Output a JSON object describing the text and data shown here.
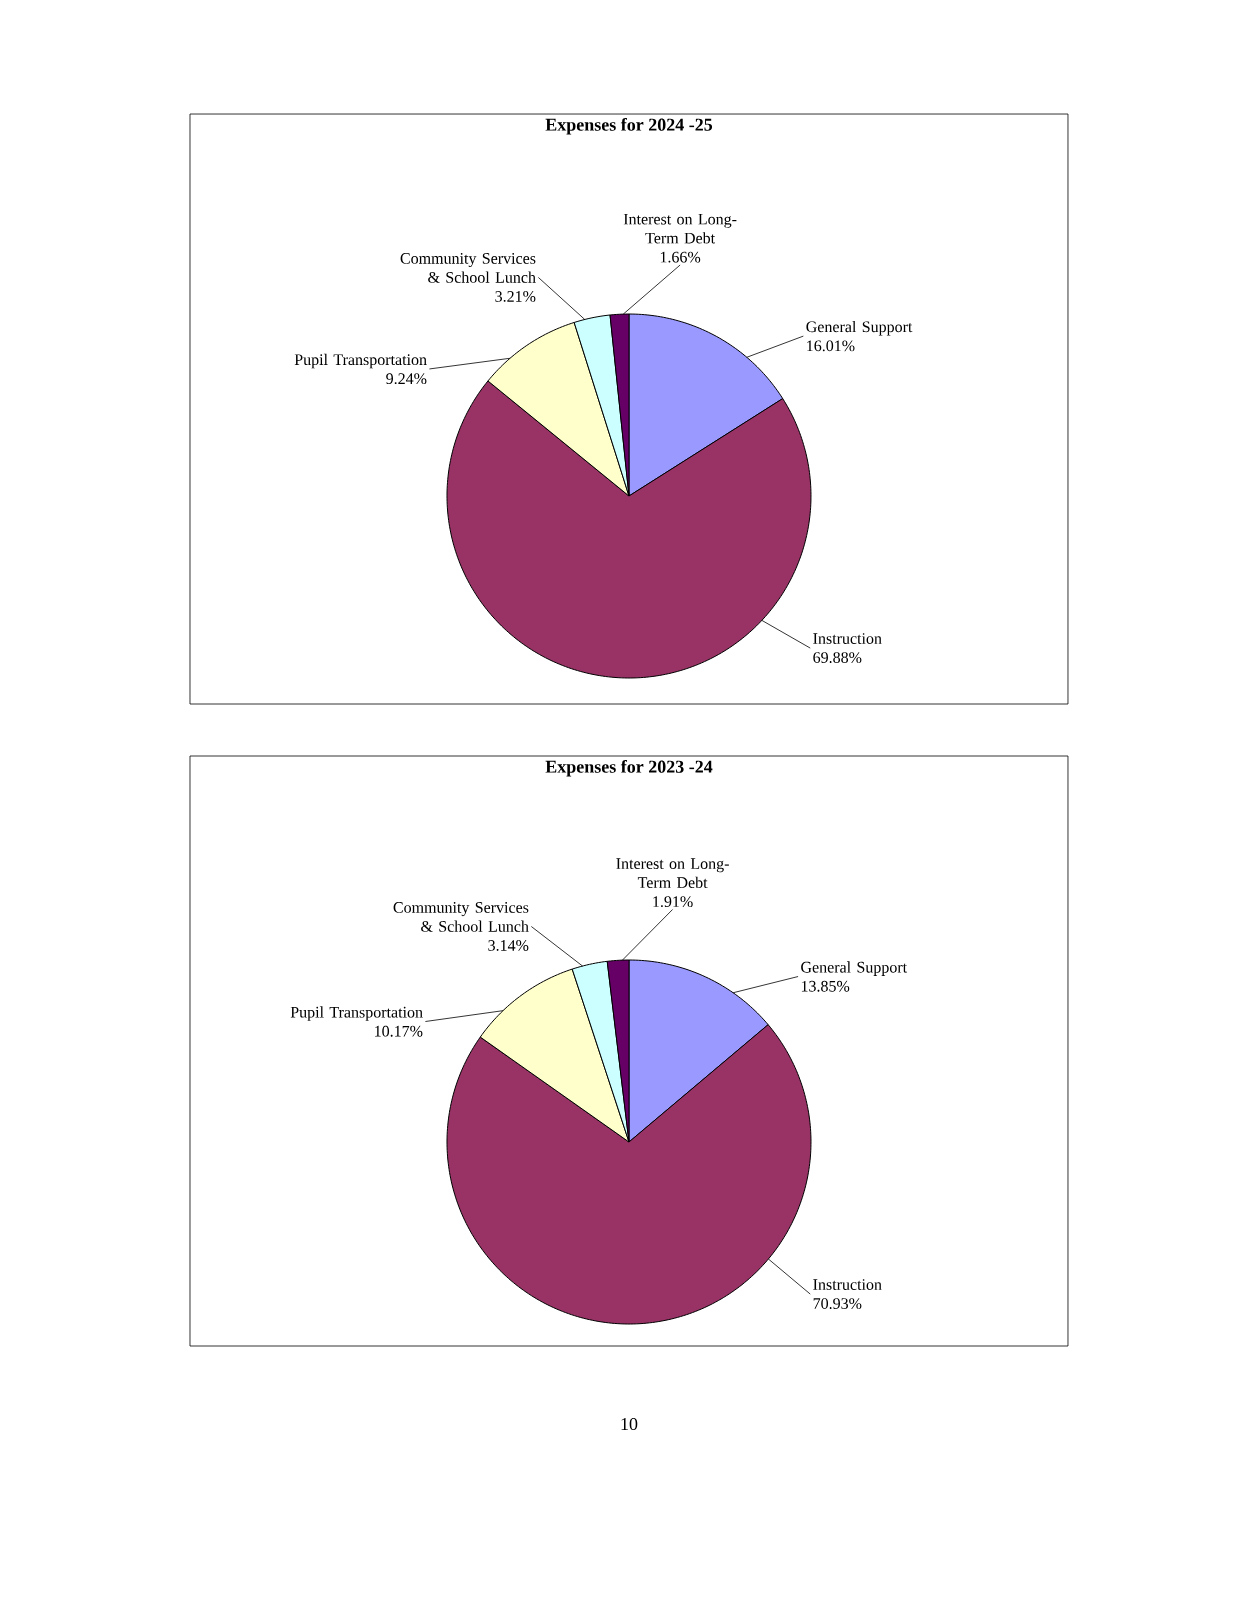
{
  "chart_data": [
    {
      "type": "pie",
      "title": "Expenses for 2024 -25",
      "categories": [
        "General Support",
        "Instruction",
        "Pupil Transportation",
        "Community Services & School Lunch",
        "Interest on Long-Term Debt"
      ],
      "values": [
        16.01,
        69.88,
        9.24,
        3.21,
        1.66
      ],
      "value_labels": [
        "16.01%",
        "69.88%",
        "9.24%",
        "3.21%",
        "1.66%"
      ],
      "colors": [
        "#9999ff",
        "#993366",
        "#ffffcc",
        "#ccffff",
        "#660066"
      ]
    },
    {
      "type": "pie",
      "title": "Expenses for 2023 -24",
      "categories": [
        "General Support",
        "Instruction",
        "Pupil Transportation",
        "Community Services & School Lunch",
        "Interest on Long-Term Debt"
      ],
      "values": [
        13.85,
        70.93,
        10.17,
        3.14,
        1.91
      ],
      "value_labels": [
        "13.85%",
        "70.93%",
        "10.17%",
        "3.14%",
        "1.91%"
      ],
      "colors": [
        "#9999ff",
        "#993366",
        "#ffffcc",
        "#ccffff",
        "#660066"
      ],
      "annotations": [
        "10"
      ]
    }
  ]
}
